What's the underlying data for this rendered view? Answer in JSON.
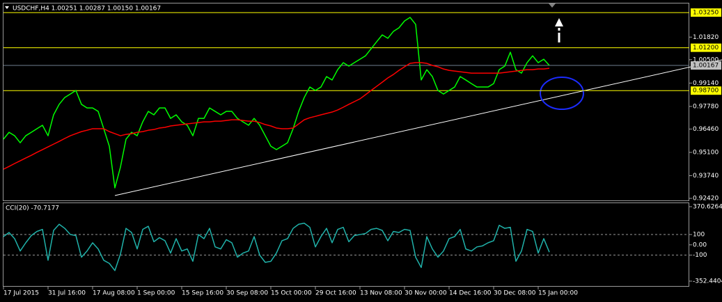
{
  "chart_data": [
    {
      "type": "line",
      "title": "USDCHF,H4 1.00251 1.00287 1.00150 1.00167",
      "series": [
        {
          "color": "#00ff00",
          "values": [
            0.9587,
            0.9627,
            0.9607,
            0.9566,
            0.9607,
            0.9627,
            0.9648,
            0.9668,
            0.9607,
            0.9729,
            0.979,
            0.983,
            0.985,
            0.9871,
            0.979,
            0.9769,
            0.9769,
            0.9749,
            0.9648,
            0.9546,
            0.9303,
            0.9424,
            0.9587,
            0.9627,
            0.9607,
            0.9688,
            0.9749,
            0.9729,
            0.9769,
            0.9769,
            0.9708,
            0.9729,
            0.9688,
            0.9668,
            0.9607,
            0.9708,
            0.9708,
            0.9769,
            0.9749,
            0.9729,
            0.9749,
            0.9749,
            0.9708,
            0.9688,
            0.9668,
            0.9708,
            0.9668,
            0.9607,
            0.9546,
            0.9526,
            0.9546,
            0.9566,
            0.9648,
            0.9749,
            0.983,
            0.9891,
            0.9871,
            0.9891,
            0.9952,
            0.9932,
            0.9992,
            1.0033,
            1.0013,
            1.0033,
            1.0053,
            1.0073,
            1.0114,
            1.0155,
            1.0195,
            1.0175,
            1.0215,
            1.0236,
            1.0276,
            1.0297,
            1.0256,
            0.9932,
            0.9992,
            0.9952,
            0.9871,
            0.985,
            0.9871,
            0.9891,
            0.9952,
            0.9932,
            0.9911,
            0.9891,
            0.9891,
            0.9891,
            0.9911,
            0.9992,
            1.0013,
            1.0094,
            0.9992,
            0.9972,
            1.0033,
            1.0073,
            1.0033,
            1.0053,
            1.00167
          ]
        },
        {
          "color": "#ff0000",
          "values": [
            0.9412,
            0.9428,
            0.9445,
            0.9461,
            0.9477,
            0.9493,
            0.951,
            0.9526,
            0.9542,
            0.9558,
            0.9574,
            0.9591,
            0.9607,
            0.9619,
            0.9631,
            0.9639,
            0.9648,
            0.9648,
            0.9648,
            0.9631,
            0.9619,
            0.9607,
            0.9615,
            0.9619,
            0.9627,
            0.9631,
            0.9639,
            0.9643,
            0.9652,
            0.9656,
            0.9664,
            0.9668,
            0.9672,
            0.9676,
            0.968,
            0.9684,
            0.9688,
            0.9688,
            0.9692,
            0.9692,
            0.9696,
            0.97,
            0.97,
            0.9696,
            0.9692,
            0.9692,
            0.9684,
            0.9672,
            0.9664,
            0.9652,
            0.9648,
            0.9648,
            0.9652,
            0.9676,
            0.97,
            0.9712,
            0.972,
            0.9729,
            0.9737,
            0.9745,
            0.9757,
            0.9773,
            0.979,
            0.9806,
            0.9822,
            0.9846,
            0.9871,
            0.9895,
            0.9919,
            0.9944,
            0.9964,
            0.9988,
            1.0009,
            1.0029,
            1.0033,
            1.0033,
            1.0029,
            1.0017,
            1.0009,
            0.9996,
            0.9988,
            0.9984,
            0.998,
            0.9976,
            0.9972,
            0.9972,
            0.9972,
            0.9972,
            0.9972,
            0.9972,
            0.9976,
            0.998,
            0.9984,
            0.9988,
            0.9992,
            0.9992,
            0.9996,
            0.9996,
            1.0
          ]
        }
      ],
      "levels": [
        {
          "value": 1.0325,
          "label": "1.03250",
          "color": "#ffff00"
        },
        {
          "value": 1.012,
          "label": "1.01200",
          "color": "#ffff00"
        },
        {
          "value": 0.987,
          "label": "0.98700",
          "color": "#ffff00"
        }
      ],
      "current_price": {
        "value": 1.00167,
        "label": "1.00167",
        "color": "#c0c0c0"
      },
      "ylim": [
        0.9234,
        1.0378
      ],
      "yticks": [
        {
          "value": 1.0182,
          "label": "1.01820"
        },
        {
          "value": 1.005,
          "label": "1.00500"
        },
        {
          "value": 0.9914,
          "label": "0.99140"
        },
        {
          "value": 0.9778,
          "label": "0.97780"
        },
        {
          "value": 0.9646,
          "label": "0.96460"
        },
        {
          "value": 0.951,
          "label": "0.95100"
        },
        {
          "value": 0.9374,
          "label": "0.93740"
        },
        {
          "value": 0.9242,
          "label": "0.92420"
        }
      ]
    },
    {
      "type": "line",
      "title": "CCI(20) -70.7177",
      "categories": [
        "17 Jul 2015",
        null,
        null,
        null,
        null,
        null,
        null,
        null,
        "31 Jul 16:00",
        null,
        null,
        null,
        null,
        null,
        null,
        null,
        "17 Aug 08:00",
        null,
        null,
        null,
        null,
        null,
        null,
        null,
        "1 Sep 00:00",
        null,
        null,
        null,
        null,
        null,
        null,
        null,
        "15 Sep 16:00",
        null,
        null,
        null,
        null,
        null,
        null,
        null,
        "30 Sep 08:00",
        null,
        null,
        null,
        null,
        null,
        null,
        null,
        "15 Oct 00:00",
        null,
        null,
        null,
        null,
        null,
        null,
        null,
        "29 Oct 16:00",
        null,
        null,
        null,
        null,
        null,
        null,
        null,
        "13 Nov 08:00",
        null,
        null,
        null,
        null,
        null,
        null,
        null,
        "30 Nov 00:00",
        null,
        null,
        null,
        null,
        null,
        null,
        null,
        "14 Dec 16:00",
        null,
        null,
        null,
        null,
        null,
        null,
        null,
        "30 Dec 08:00",
        null,
        null,
        null,
        null,
        null,
        null,
        null,
        "15 Jan 00:00",
        null,
        null
      ],
      "series": [
        {
          "color": "#20b2aa",
          "values": [
            80,
            120,
            60,
            -60,
            20,
            90,
            130,
            150,
            -150,
            140,
            200,
            160,
            100,
            90,
            -120,
            -60,
            20,
            -40,
            -150,
            -180,
            -250,
            -90,
            160,
            120,
            -40,
            150,
            180,
            30,
            70,
            40,
            -80,
            60,
            -60,
            -40,
            -160,
            100,
            60,
            160,
            -20,
            -40,
            50,
            20,
            -120,
            -80,
            -60,
            80,
            -100,
            -170,
            -160,
            -80,
            40,
            60,
            160,
            200,
            210,
            170,
            -20,
            80,
            160,
            20,
            150,
            170,
            30,
            90,
            100,
            110,
            150,
            160,
            140,
            40,
            130,
            120,
            150,
            140,
            -120,
            -220,
            80,
            -40,
            -120,
            -60,
            60,
            80,
            150,
            -40,
            -60,
            -20,
            -10,
            20,
            40,
            190,
            160,
            170,
            -160,
            -60,
            150,
            130,
            -80,
            60,
            -70.7177
          ]
        }
      ],
      "ylim": [
        -352.4404,
        370.6264
      ],
      "yticks": [
        370.6264,
        100,
        {
          "value": 0,
          "label": "0.00"
        },
        -100,
        -352.4404
      ]
    }
  ]
}
